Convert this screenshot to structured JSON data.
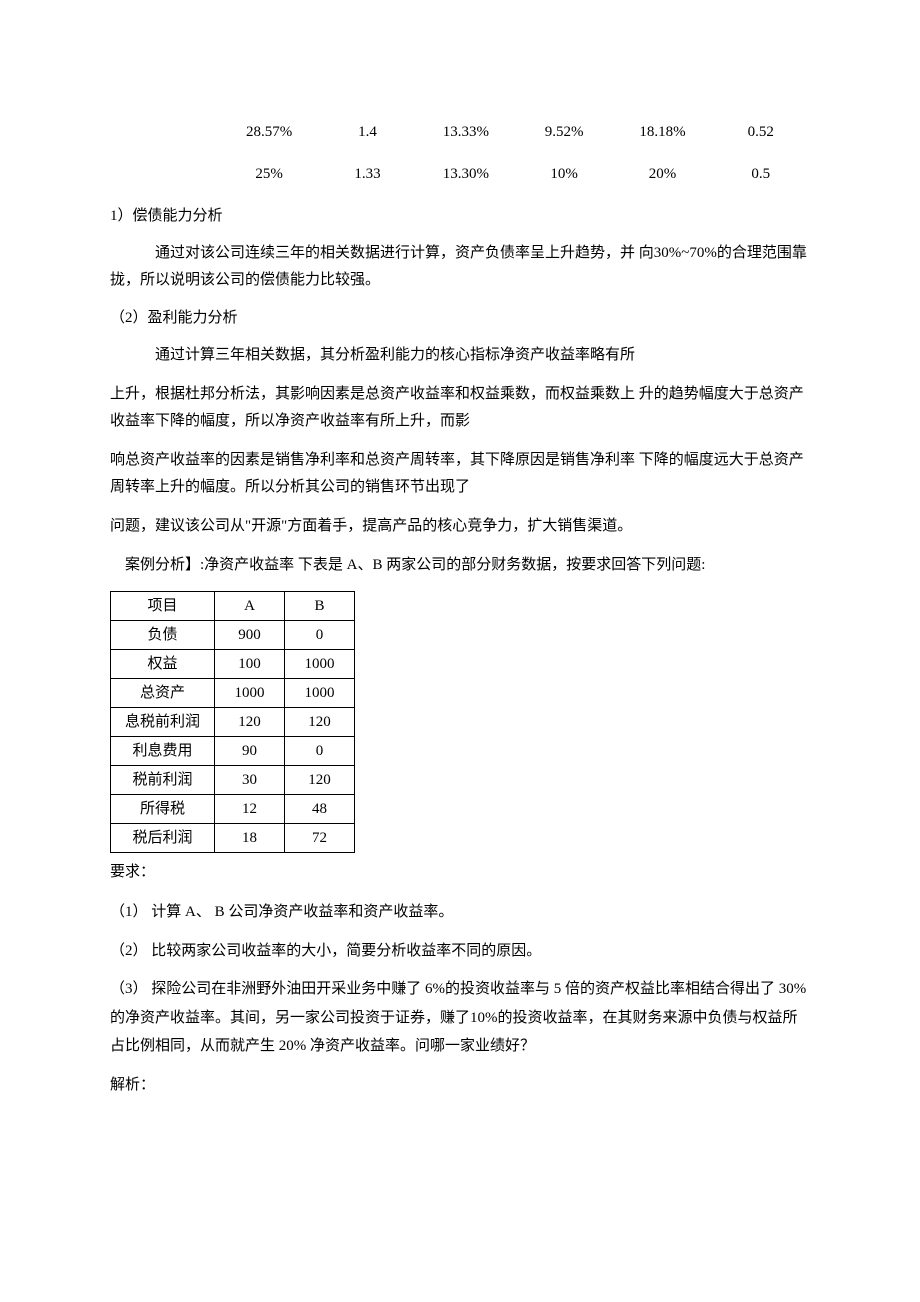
{
  "top_numbers": {
    "row1": [
      "28.57%",
      "1.4",
      "13.33%",
      "9.52%",
      "18.18%",
      "0.52"
    ],
    "row2": [
      "25%",
      "1.33",
      "13.30%",
      "10%",
      "20%",
      "0.5"
    ]
  },
  "sections": {
    "s1": {
      "heading": "1）偿债能力分析",
      "p1": "通过对该公司连续三年的相关数据进行计算，资产负债率呈上升趋势，并 向30%~70%的合理范围靠拢，所以说明该公司的偿债能力比较强。"
    },
    "s2": {
      "heading": "（2）盈利能力分析",
      "p1": "通过计算三年相关数据，其分析盈利能力的核心指标净资产收益率略有所",
      "p2": "上升，根据杜邦分析法，其影响因素是总资产收益率和权益乘数，而权益乘数上 升的趋势幅度大于总资产收益率下降的幅度，所以净资产收益率有所上升，而影",
      "p3": "响总资产收益率的因素是销售净利率和总资产周转率，其下降原因是销售净利率 下降的幅度远大于总资产周转率上升的幅度。所以分析其公司的销售环节出现了",
      "p4": "问题，建议该公司从\"开源\"方面着手，提高产品的核心竞争力，扩大销售渠道。"
    }
  },
  "case": {
    "intro": "案例分析】:净资产收益率 下表是 A、B 两家公司的部分财务数据，按要求回答下列问题:",
    "table": {
      "rows": [
        [
          "项目",
          "A",
          "B"
        ],
        [
          "负债",
          "900",
          "0"
        ],
        [
          "权益",
          "100",
          "1000"
        ],
        [
          "总资产",
          "1000",
          "1000"
        ],
        [
          "息税前利润",
          "120",
          "120"
        ],
        [
          "利息费用",
          "90",
          "0"
        ],
        [
          "税前利润",
          "30",
          "120"
        ],
        [
          "所得税",
          "12",
          "48"
        ],
        [
          "税后利润",
          "18",
          "72"
        ]
      ]
    },
    "req_label": "要求：",
    "q1": "（1） 计算 A、 B 公司净资产收益率和资产收益率。",
    "q2": "（2） 比较两家公司收益率的大小，简要分析收益率不同的原因。",
    "q3": "（3） 探险公司在非洲野外油田开采业务中赚了 6%的投资收益率与 5 倍的资产权益比率相结合得出了 30%的净资产收益率。其间，另一家公司投资于证券，赚了10%的投资收益率，在其财务来源中负债与权益所占比例相同，从而就产生 20% 净资产收益率。问哪一家业绩好？",
    "answer_label": "解析："
  }
}
